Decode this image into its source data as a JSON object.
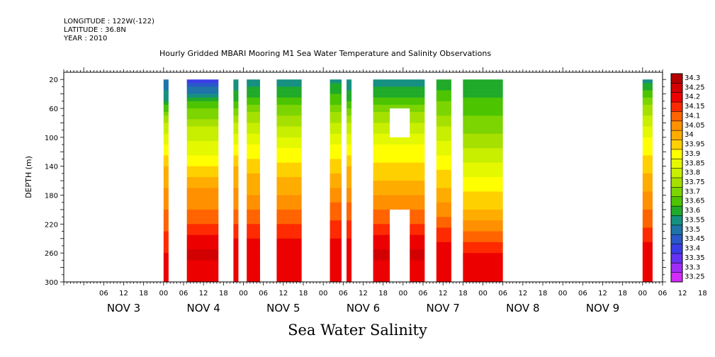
{
  "header": {
    "longitude": "LONGITUDE : 122W(-122)",
    "latitude": "LATITUDE : 36.8N",
    "year": "YEAR : 2010",
    "title": "Hourly Gridded MBARI Mooring M1 Sea Water Temperature and Salinity Observations"
  },
  "footer_label": "Sea Water Salinity",
  "chart_data": {
    "type": "heatmap",
    "title": "Hourly Gridded MBARI Mooring M1 Sea Water Temperature and Salinity Observations",
    "ylabel": "DEPTH (m)",
    "xlabel": "",
    "x_unit": "hours since NOV 3 00:00 (2010)",
    "xlim": [
      -6,
      174
    ],
    "ylim": [
      300,
      10
    ],
    "y_ticks": [
      20,
      60,
      100,
      140,
      180,
      220,
      260,
      300
    ],
    "x_tick_labels": [
      "06",
      "12",
      "18",
      "00",
      "06",
      "12",
      "18",
      "00",
      "06",
      "12",
      "18",
      "00",
      "06",
      "12",
      "18",
      "00",
      "06",
      "12",
      "18",
      "00",
      "06",
      "12",
      "18",
      "00",
      "06",
      "12",
      "18",
      "00",
      "06",
      "12",
      "18",
      "00"
    ],
    "day_labels": [
      "NOV 3",
      "NOV 4",
      "NOV 5",
      "NOV 6",
      "NOV 7",
      "NOV 8",
      "NOV 9"
    ],
    "colorbar": {
      "levels": [
        "34.3",
        "34.25",
        "34.2",
        "34.15",
        "34.1",
        "34.05",
        "34",
        "33.95",
        "33.9",
        "33.85",
        "33.8",
        "33.75",
        "33.7",
        "33.65",
        "33.6",
        "33.55",
        "33.5",
        "33.45",
        "33.4",
        "33.35",
        "33.3",
        "33.25"
      ],
      "colors": [
        "#b40000",
        "#d20000",
        "#ec0000",
        "#ff2a00",
        "#ff6400",
        "#ff9000",
        "#ffac00",
        "#ffd000",
        "#ffff00",
        "#e4f800",
        "#c8ee00",
        "#a6e000",
        "#7cd400",
        "#4cc400",
        "#20aa2a",
        "#169080",
        "#1e74a8",
        "#2a58c8",
        "#3a3ee6",
        "#6432f2",
        "#a02cf8",
        "#d22cfa"
      ]
    },
    "data_segments": [
      {
        "start": 24,
        "end": 25.5,
        "profile": [
          33.5,
          33.6,
          33.8,
          33.9,
          34.0,
          34.05,
          34.1,
          34.15,
          34.2,
          34.22
        ]
      },
      {
        "start": 31,
        "end": 40.5,
        "profile": [
          33.4,
          33.65,
          33.78,
          33.86,
          33.95,
          34.05,
          34.1,
          34.18,
          34.26,
          34.22
        ]
      },
      {
        "start": 45,
        "end": 46.5,
        "profile": [
          33.55,
          33.65,
          33.8,
          33.9,
          34.0,
          34.05,
          34.1,
          34.18,
          34.24,
          34.22
        ]
      },
      {
        "start": 49,
        "end": 53,
        "profile": [
          33.55,
          33.68,
          33.8,
          33.9,
          33.98,
          34.03,
          34.1,
          34.18,
          34.24,
          34.22
        ]
      },
      {
        "start": 58,
        "end": 65.5,
        "profile": [
          33.55,
          33.68,
          33.78,
          33.88,
          33.97,
          34.03,
          34.1,
          34.18,
          34.25,
          34.22
        ]
      },
      {
        "start": 74,
        "end": 77.5,
        "profile": [
          33.58,
          33.68,
          33.8,
          33.9,
          33.98,
          34.05,
          34.12,
          34.18,
          34.25,
          34.22
        ]
      },
      {
        "start": 79,
        "end": 80.5,
        "profile": [
          33.55,
          33.65,
          33.8,
          33.9,
          34.0,
          34.05,
          34.12,
          34.18,
          34.25,
          34.22
        ]
      },
      {
        "start": 87,
        "end": 102.5,
        "profile": [
          33.55,
          33.68,
          33.8,
          33.9,
          33.96,
          34.02,
          34.1,
          34.18,
          34.26,
          34.22
        ]
      },
      {
        "start": 106,
        "end": 110.5,
        "profile": [
          33.6,
          33.7,
          33.78,
          33.86,
          33.94,
          34.0,
          34.08,
          34.16,
          34.24,
          34.22
        ]
      },
      {
        "start": 114,
        "end": 126,
        "profile": [
          33.6,
          33.66,
          33.72,
          33.78,
          33.86,
          33.94,
          34.0,
          34.1,
          34.2,
          34.2
        ]
      },
      {
        "start": 168,
        "end": 171,
        "profile": [
          33.58,
          33.72,
          33.84,
          33.92,
          33.98,
          34.04,
          34.1,
          34.16,
          34.24,
          34.22
        ]
      },
      {
        "start": 174,
        "end": 175,
        "profile": [
          33.6,
          33.7,
          33.8,
          33.9,
          33.98,
          34.04,
          34.1,
          34.16,
          34.22,
          34.2
        ]
      }
    ],
    "profile_depths": [
      20,
      50,
      80,
      110,
      140,
      170,
      200,
      230,
      260,
      290
    ],
    "gaps": [
      {
        "start": 92,
        "end": 98,
        "depth_top": 60,
        "depth_bottom": 100
      },
      {
        "start": 92,
        "end": 98,
        "depth_top": 200,
        "depth_bottom": 300
      }
    ]
  }
}
